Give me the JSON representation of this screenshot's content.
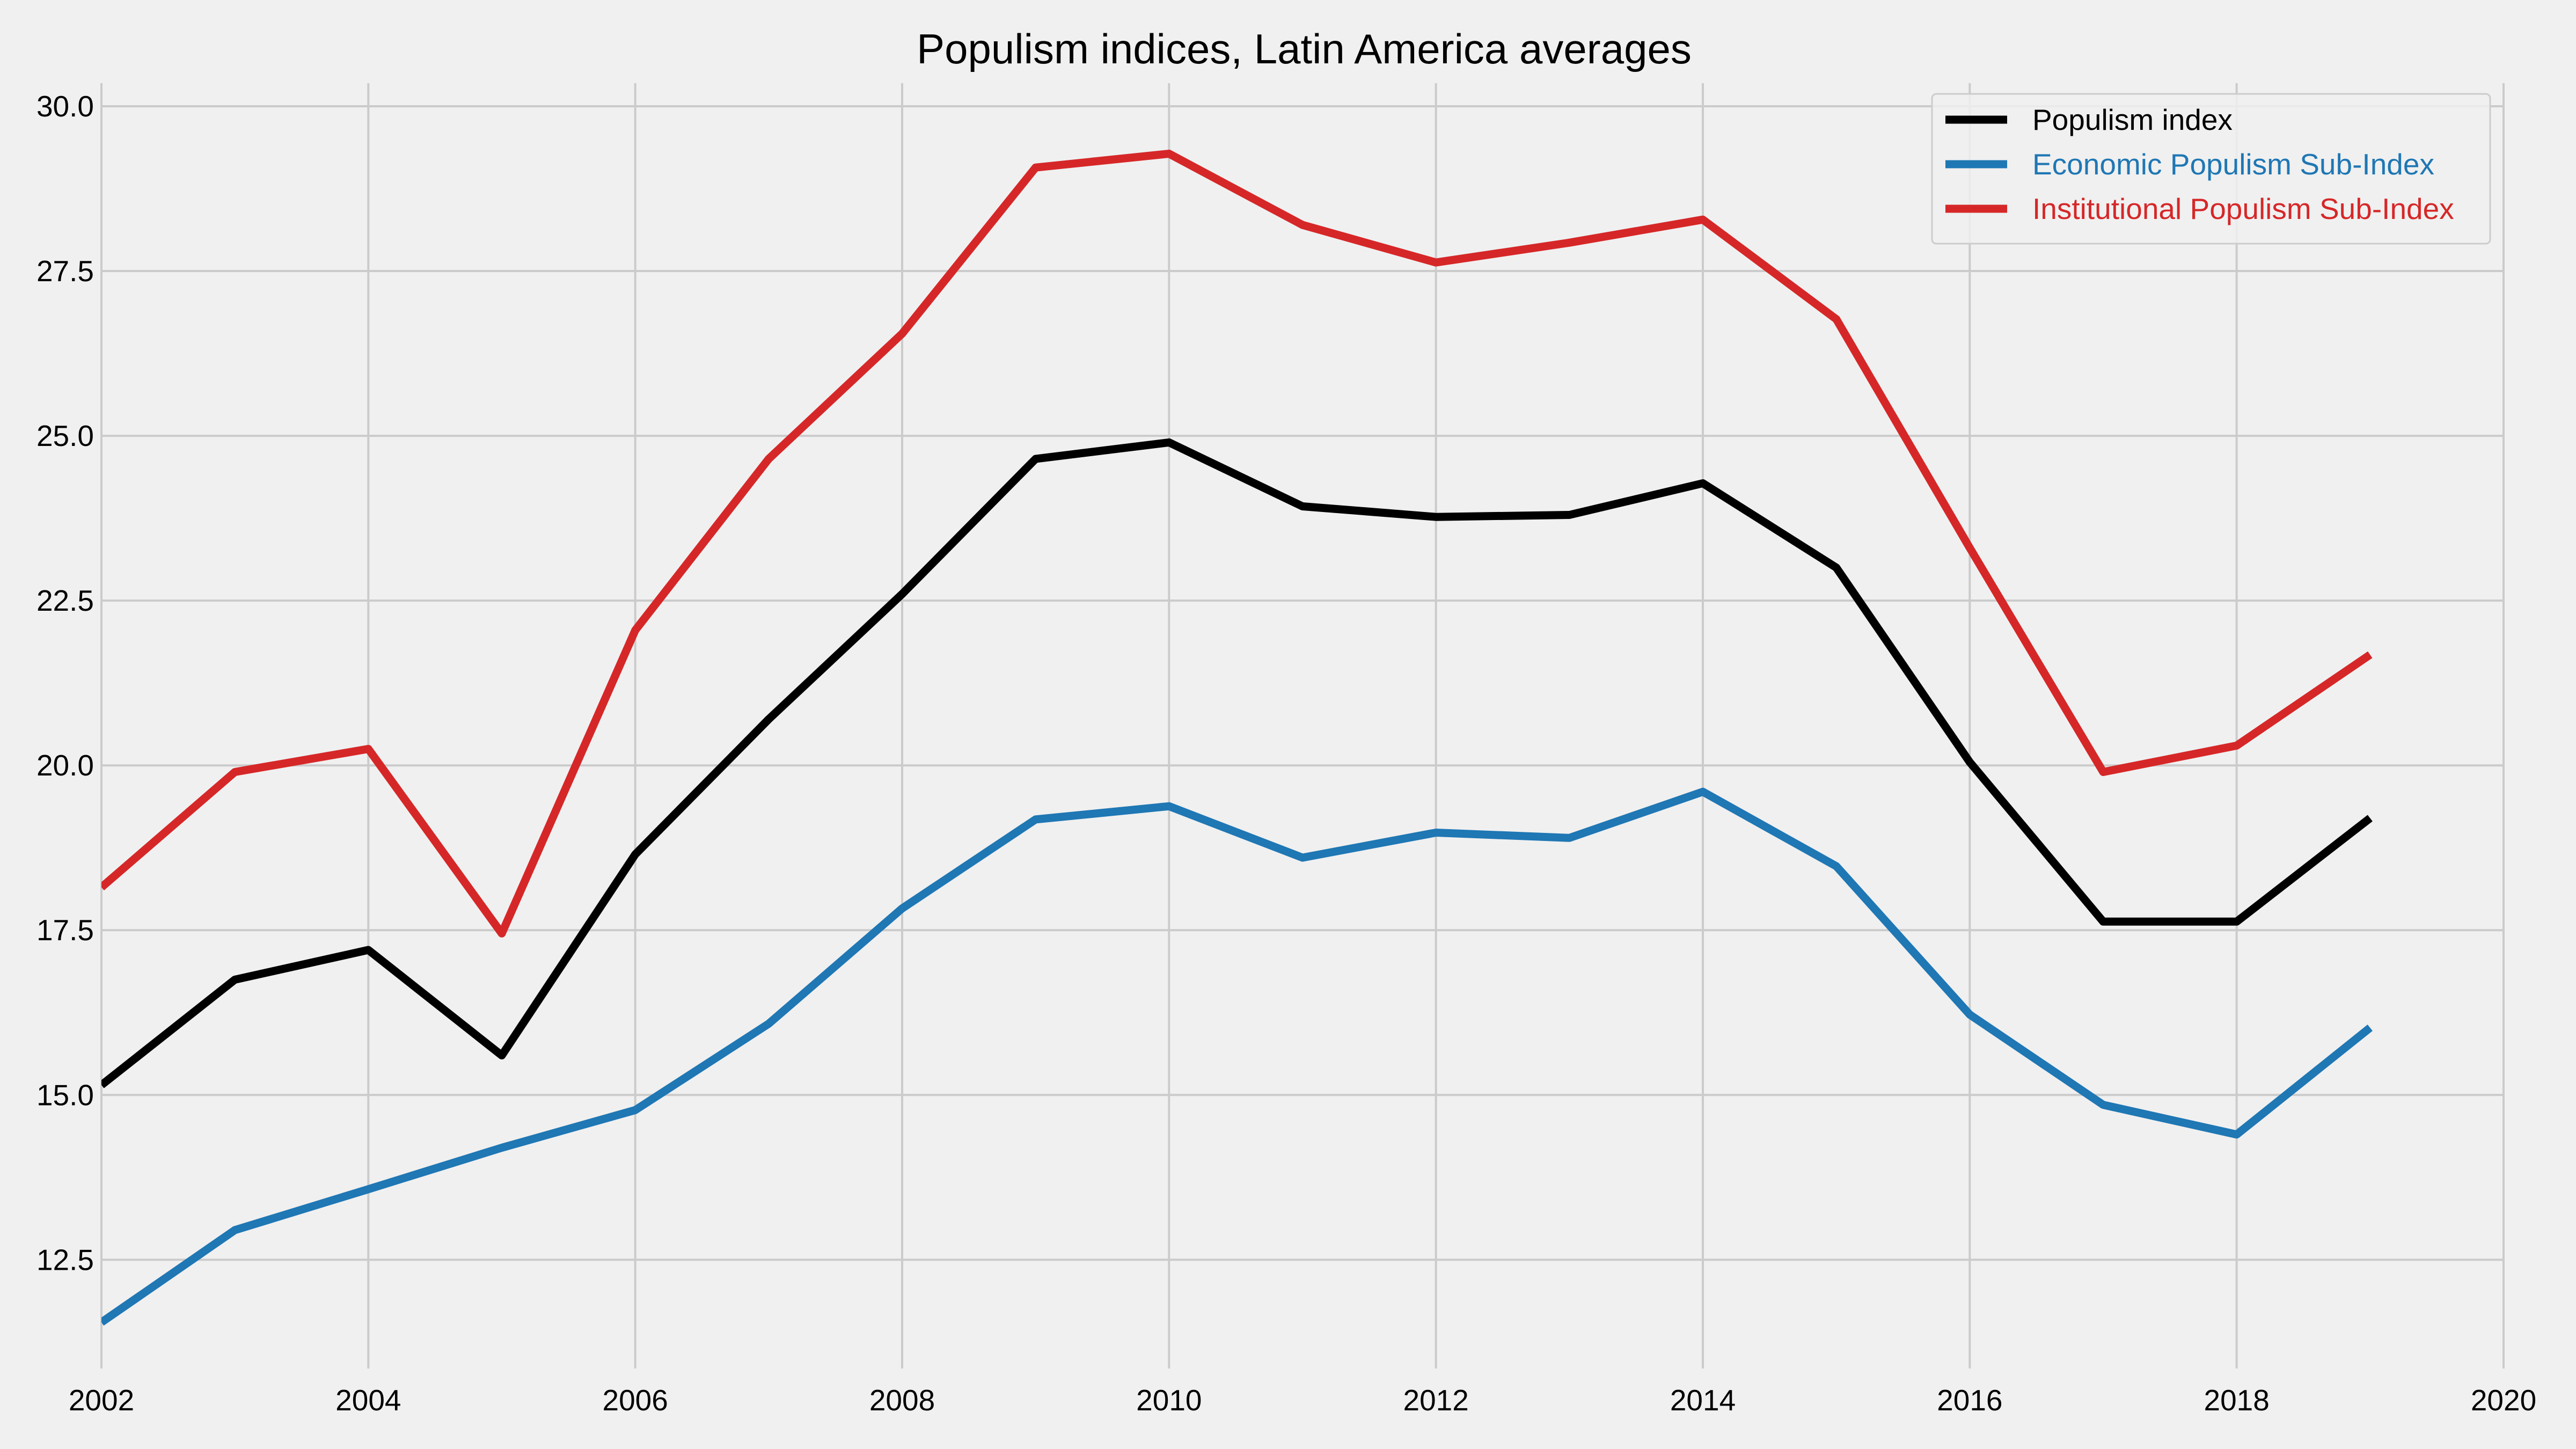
{
  "chart_data": {
    "type": "line",
    "title": "Populism indices, Latin America averages",
    "xlabel": "",
    "ylabel": "",
    "xlim": [
      2002,
      2020
    ],
    "ylim": [
      10.85,
      30.35
    ],
    "x_ticks": [
      2002,
      2004,
      2006,
      2008,
      2010,
      2012,
      2014,
      2016,
      2018,
      2020
    ],
    "x_tick_labels": [
      "2002",
      "2004",
      "2006",
      "2008",
      "2010",
      "2012",
      "2014",
      "2016",
      "2018",
      "2020"
    ],
    "y_ticks": [
      12.5,
      15.0,
      17.5,
      20.0,
      22.5,
      25.0,
      27.5,
      30.0
    ],
    "y_tick_labels": [
      "12.5",
      "15.0",
      "17.5",
      "20.0",
      "22.5",
      "25.0",
      "27.5",
      "30.0"
    ],
    "grid": true,
    "legend_position": "top-right",
    "x": [
      2002,
      2003,
      2004,
      2005,
      2006,
      2007,
      2008,
      2009,
      2010,
      2011,
      2012,
      2013,
      2014,
      2015,
      2016,
      2017,
      2018,
      2019
    ],
    "series": [
      {
        "name": "Populism index",
        "color": "#000000",
        "values": [
          15.15,
          16.75,
          17.2,
          15.6,
          18.65,
          20.7,
          22.6,
          24.65,
          24.9,
          23.93,
          23.77,
          23.8,
          24.28,
          23.0,
          20.05,
          17.63,
          17.63,
          19.2
        ]
      },
      {
        "name": "Economic Populism Sub-Index",
        "color": "#1f77b4",
        "values": [
          11.55,
          12.95,
          13.57,
          14.2,
          14.77,
          16.08,
          17.83,
          19.18,
          19.38,
          18.6,
          18.98,
          18.9,
          19.6,
          18.47,
          16.22,
          14.85,
          14.4,
          16.02
        ]
      },
      {
        "name": "Institutional Populism Sub-Index",
        "color": "#d62728",
        "values": [
          18.15,
          19.9,
          20.25,
          17.45,
          22.05,
          24.65,
          26.55,
          29.07,
          29.28,
          28.2,
          27.63,
          27.93,
          28.28,
          26.77,
          23.3,
          19.9,
          20.3,
          21.68
        ]
      }
    ]
  }
}
